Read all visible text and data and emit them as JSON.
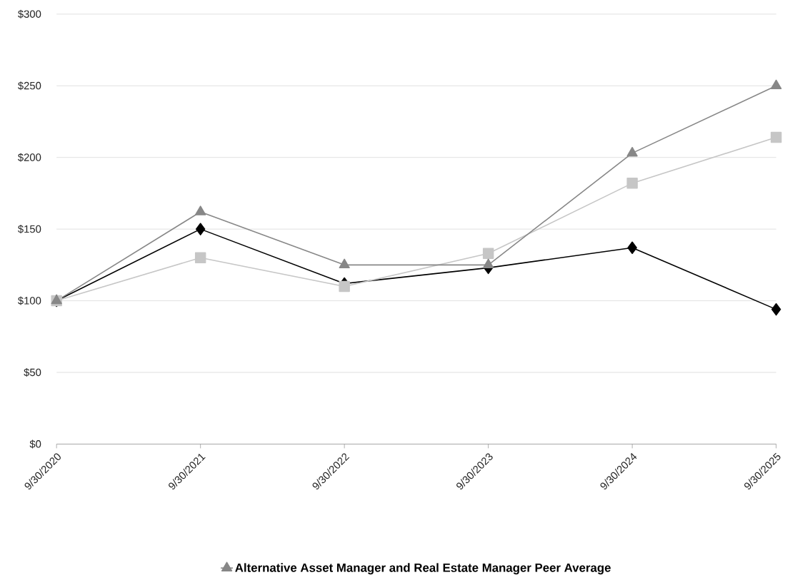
{
  "chart_data": {
    "type": "line",
    "categories": [
      "9/30/2020",
      "9/30/2021",
      "9/30/2022",
      "9/30/2023",
      "9/30/2024",
      "9/30/2025"
    ],
    "series": [
      {
        "color": "#000000",
        "marker": "diamond",
        "values": [
          100,
          150,
          112,
          123,
          137,
          94
        ]
      },
      {
        "color": "#c6c6c6",
        "marker": "square",
        "values": [
          100,
          130,
          110,
          133,
          182,
          214
        ]
      },
      {
        "name": "Alternative Asset Manager and Real Estate Manager Peer Average",
        "color": "#878787",
        "marker": "triangle",
        "values": [
          100,
          162,
          125,
          125,
          203,
          250
        ]
      }
    ],
    "ylim": [
      0,
      300
    ],
    "yticks": [
      {
        "value": 0,
        "label": "$0"
      },
      {
        "value": 50,
        "label": "$50"
      },
      {
        "value": 100,
        "label": "$100"
      },
      {
        "value": 150,
        "label": "$150"
      },
      {
        "value": 200,
        "label": "$200"
      },
      {
        "value": 250,
        "label": "$250"
      },
      {
        "value": 300,
        "label": "$300"
      }
    ],
    "grid": "y",
    "legend": "bottom",
    "line_style": "solid"
  }
}
